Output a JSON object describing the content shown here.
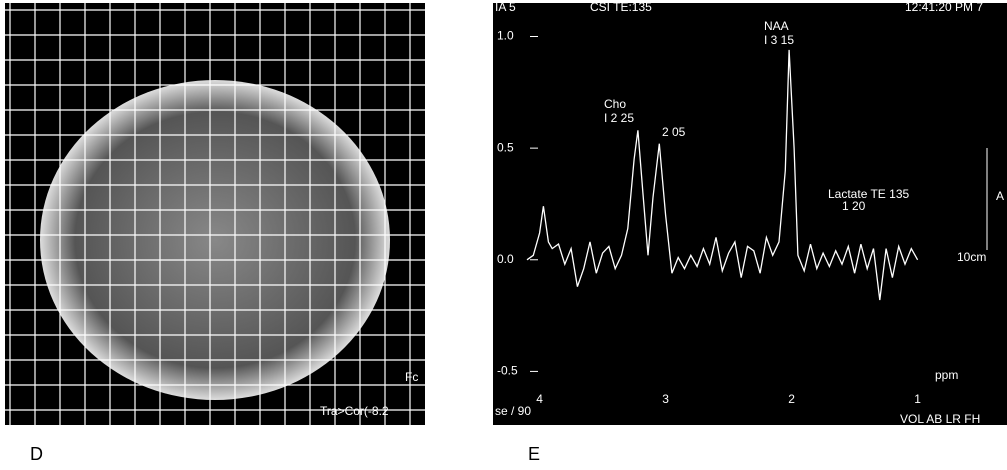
{
  "panels": [
    {
      "label": "D",
      "texts": [
        "Fc",
        "Tra>Cor(-8.2"
      ]
    },
    {
      "label": "E"
    }
  ],
  "chart_data": {
    "type": "line",
    "header": [
      "IA 5",
      "CSI TE:135",
      "12:41:20 PM 7"
    ],
    "footer": [
      "se / 90",
      "VOL AB LR FH"
    ],
    "annotations": [
      "NAA",
      "I  3 15",
      "Cho",
      "I  2 25",
      "2 05",
      "Lactate TE 135",
      "1 20"
    ],
    "side_labels": [
      "10cm",
      "A"
    ],
    "x_label": "ppm",
    "x": [
      4.1,
      4.05,
      4.0,
      3.97,
      3.93,
      3.9,
      3.85,
      3.8,
      3.75,
      3.7,
      3.65,
      3.6,
      3.55,
      3.5,
      3.45,
      3.4,
      3.35,
      3.3,
      3.25,
      3.22,
      3.18,
      3.14,
      3.1,
      3.05,
      3.0,
      2.95,
      2.9,
      2.85,
      2.8,
      2.75,
      2.7,
      2.65,
      2.6,
      2.55,
      2.5,
      2.45,
      2.4,
      2.35,
      2.3,
      2.25,
      2.2,
      2.15,
      2.1,
      2.05,
      2.02,
      1.98,
      1.95,
      1.9,
      1.85,
      1.8,
      1.75,
      1.7,
      1.65,
      1.6,
      1.55,
      1.5,
      1.45,
      1.4,
      1.35,
      1.3,
      1.25,
      1.2,
      1.15,
      1.1,
      1.05,
      1.0
    ],
    "series": [
      {
        "color": "#ffffff",
        "values": [
          0.0,
          0.02,
          0.12,
          0.24,
          0.08,
          0.05,
          0.07,
          -0.02,
          0.05,
          -0.12,
          -0.04,
          0.08,
          -0.06,
          0.03,
          0.06,
          -0.04,
          0.02,
          0.14,
          0.45,
          0.58,
          0.3,
          0.02,
          0.28,
          0.52,
          0.2,
          -0.06,
          0.01,
          -0.04,
          0.02,
          -0.03,
          0.05,
          -0.02,
          0.1,
          -0.05,
          0.03,
          0.08,
          -0.08,
          0.06,
          0.04,
          -0.06,
          0.1,
          0.02,
          0.08,
          0.4,
          0.94,
          0.5,
          0.02,
          -0.05,
          0.07,
          -0.04,
          0.03,
          -0.03,
          0.04,
          -0.02,
          0.06,
          -0.06,
          0.07,
          -0.04,
          0.05,
          -0.18,
          0.05,
          -0.08,
          0.06,
          -0.02,
          0.05,
          0.0
        ]
      }
    ],
    "xlim": [
      4.37,
      0.29
    ],
    "ylim": [
      -0.74,
      1.15
    ],
    "xticks": [
      4,
      3,
      2,
      1
    ],
    "yticks": [
      {
        "value": 1,
        "label": "1.0"
      },
      0.5,
      {
        "value": 0,
        "label": "0.0"
      },
      -0.5
    ]
  }
}
